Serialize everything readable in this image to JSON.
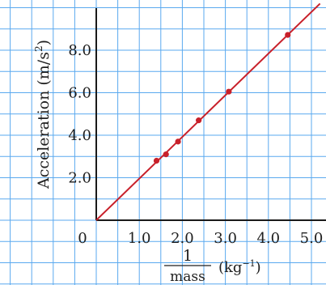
{
  "chart_data": {
    "type": "scatter",
    "title": "",
    "xlabel": {
      "numerator": "1",
      "denominator": "mass",
      "unit_prefix": "(kg",
      "unit_exponent": "−1",
      "unit_suffix": ")"
    },
    "ylabel": {
      "text": "Acceleration (m/s",
      "exponent": "2",
      "suffix": ")"
    },
    "xlim": [
      -0.5,
      5.2
    ],
    "ylim": [
      -2.1,
      10.0
    ],
    "grid": true,
    "x_ticks": [
      {
        "value": 0,
        "label": "0"
      },
      {
        "value": 1.0,
        "label": "1.0"
      },
      {
        "value": 2.0,
        "label": "2.0"
      },
      {
        "value": 3.0,
        "label": "3.0"
      },
      {
        "value": 4.0,
        "label": "4.0"
      },
      {
        "value": 5.0,
        "label": "5.0"
      }
    ],
    "y_ticks": [
      {
        "value": 2.0,
        "label": "2.0"
      },
      {
        "value": 4.0,
        "label": "4.0"
      },
      {
        "value": 6.0,
        "label": "6.0"
      },
      {
        "value": 8.0,
        "label": "8.0"
      }
    ],
    "series": [
      {
        "x": [
          1.4,
          1.62,
          1.9,
          2.38,
          3.08,
          4.45
        ],
        "y": [
          2.8,
          3.1,
          3.7,
          4.7,
          6.05,
          8.72
        ]
      }
    ],
    "fit_line": {
      "slope": 1.96,
      "intercept": 0,
      "x_range": [
        0,
        5.2
      ]
    },
    "colors": {
      "grid": "#5aa9ef",
      "axis": "#1a1a1a",
      "series": "#c8202a"
    }
  }
}
